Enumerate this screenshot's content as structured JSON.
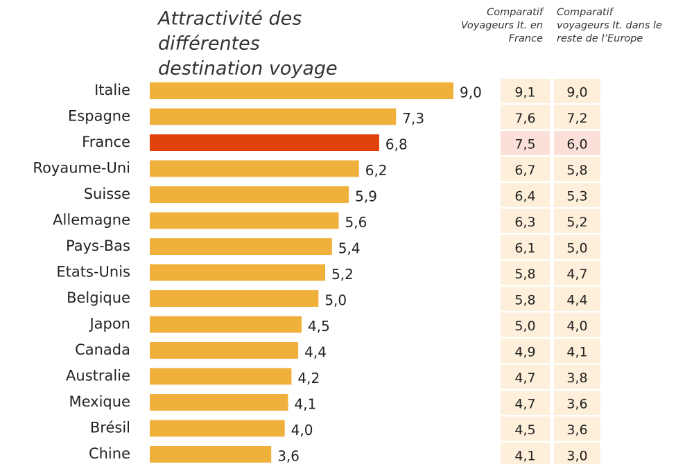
{
  "chart_data": {
    "type": "bar",
    "orientation": "horizontal",
    "title": [
      "Attractivité des",
      "différentes",
      "destination voyage"
    ],
    "categories": [
      "Italie",
      "Espagne",
      "France",
      "Royaume-Uni",
      "Suisse",
      "Allemagne",
      "Pays-Bas",
      "Etats-Unis",
      "Belgique",
      "Japon",
      "Canada",
      "Australie",
      "Mexique",
      "Brésil",
      "Chine"
    ],
    "values": [
      9.0,
      7.3,
      6.8,
      6.2,
      5.9,
      5.6,
      5.4,
      5.2,
      5.0,
      4.5,
      4.4,
      4.2,
      4.1,
      4.0,
      3.6
    ],
    "value_labels": [
      "9,0",
      "7,3",
      "6,8",
      "6,2",
      "5,9",
      "5,6",
      "5,4",
      "5,2",
      "5,0",
      "4,5",
      "4,4",
      "4,2",
      "4,1",
      "4,0",
      "3,6"
    ],
    "color": "#f0b03c",
    "highlight": {
      "category": "France",
      "color": "#e0420a",
      "cell_color": "#fbe0da"
    },
    "cell_color": "#fdefd9",
    "columns": [
      {
        "name": [
          "Comparatif",
          "Voyageurs It. en",
          "France"
        ],
        "values": [
          9.1,
          7.6,
          7.5,
          6.7,
          6.4,
          6.3,
          6.1,
          5.8,
          5.8,
          5.0,
          4.9,
          4.7,
          4.7,
          4.5,
          4.1
        ],
        "value_labels": [
          "9,1",
          "7,6",
          "7,5",
          "6,7",
          "6,4",
          "6,3",
          "6,1",
          "5,8",
          "5,8",
          "5,0",
          "4,9",
          "4,7",
          "4,7",
          "4,5",
          "4,1"
        ]
      },
      {
        "name": [
          "Comparatif",
          "voyageurs It. dans le",
          "reste de l’Europe"
        ],
        "values": [
          9.0,
          7.2,
          6.0,
          5.8,
          5.3,
          5.2,
          5.0,
          4.7,
          4.4,
          4.0,
          4.1,
          3.8,
          3.6,
          3.6,
          3.0
        ],
        "value_labels": [
          "9,0",
          "7,2",
          "6,0",
          "5,8",
          "5,3",
          "5,2",
          "5,0",
          "4,7",
          "4,4",
          "4,0",
          "4,1",
          "3,8",
          "3,6",
          "3,6",
          "3,0"
        ]
      }
    ]
  }
}
